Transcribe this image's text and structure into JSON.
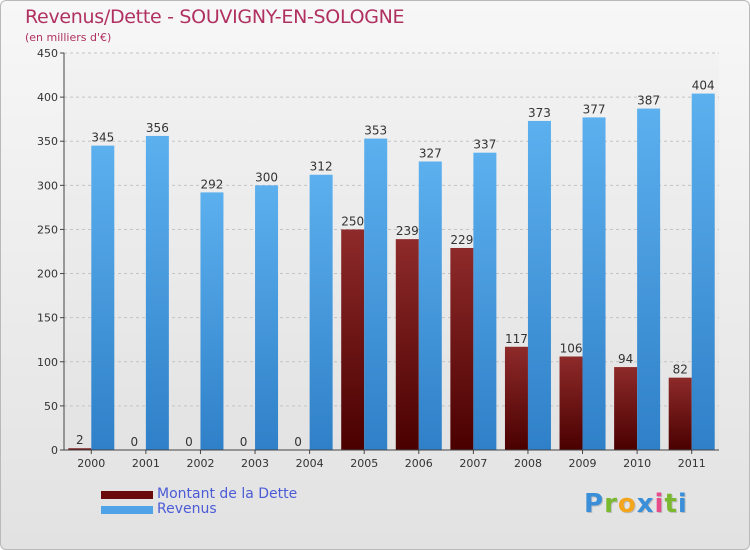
{
  "header": {
    "title": "Revenus/Dette - SOUVIGNY-EN-SOLOGNE",
    "subtitle": "(en milliers d'€)"
  },
  "legend": {
    "items": [
      {
        "label": "Montant de la Dette",
        "color": "#6b0a0a"
      },
      {
        "label": "Revenus",
        "color": "#4fa3e6"
      }
    ]
  },
  "logo": {
    "letters": [
      {
        "ch": "P",
        "color": "#3a8fd8"
      },
      {
        "ch": "r",
        "color": "#7ab82e"
      },
      {
        "ch": "o",
        "color": "#f3a51c"
      },
      {
        "ch": "x",
        "color": "#3a8fd8"
      },
      {
        "ch": "i",
        "color": "#e64b8a"
      },
      {
        "ch": "t",
        "color": "#7ab82e"
      },
      {
        "ch": "i",
        "color": "#3a8fd8"
      }
    ]
  },
  "chart_data": {
    "type": "bar",
    "title": "Revenus/Dette - SOUVIGNY-EN-SOLOGNE",
    "subtitle": "(en milliers d'€)",
    "categories": [
      "2000",
      "2001",
      "2002",
      "2003",
      "2004",
      "2005",
      "2006",
      "2007",
      "2008",
      "2009",
      "2010",
      "2011"
    ],
    "series": [
      {
        "name": "Montant de la Dette",
        "color": "#6b0a0a",
        "values": [
          2,
          0,
          0,
          0,
          0,
          250,
          239,
          229,
          117,
          106,
          94,
          82
        ]
      },
      {
        "name": "Revenus",
        "color": "#4fa3e6",
        "values": [
          345,
          356,
          292,
          300,
          312,
          353,
          327,
          337,
          373,
          377,
          387,
          404
        ]
      }
    ],
    "ylim": [
      0,
      450
    ],
    "yticks": [
      0,
      50,
      100,
      150,
      200,
      250,
      300,
      350,
      400,
      450
    ],
    "grid": true,
    "legend_position": "bottom-left"
  }
}
